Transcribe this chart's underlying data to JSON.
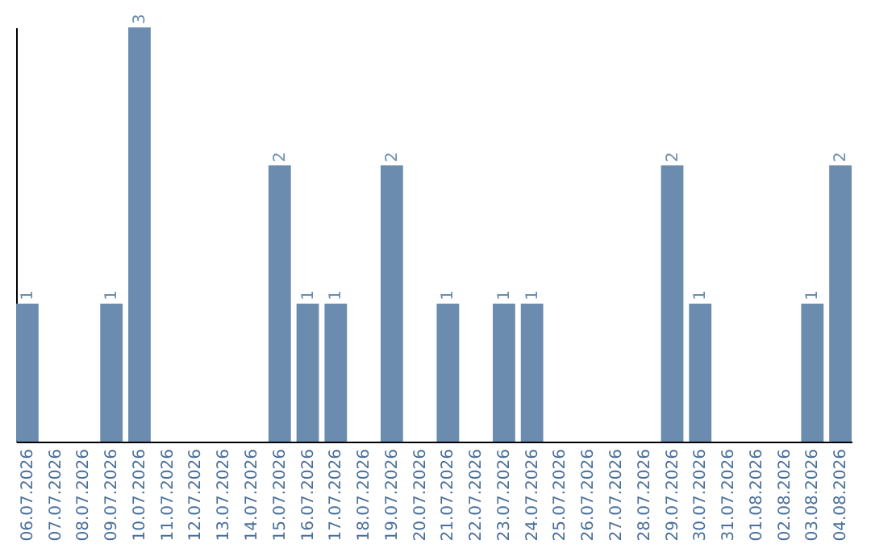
{
  "chart_data": {
    "type": "bar",
    "categories": [
      "06.07.2026",
      "07.07.2026",
      "08.07.2026",
      "09.07.2026",
      "10.07.2026",
      "11.07.2026",
      "12.07.2026",
      "13.07.2026",
      "14.07.2026",
      "15.07.2026",
      "16.07.2026",
      "17.07.2026",
      "18.07.2026",
      "19.07.2026",
      "20.07.2026",
      "21.07.2026",
      "22.07.2026",
      "23.07.2026",
      "24.07.2026",
      "25.07.2026",
      "26.07.2026",
      "27.07.2026",
      "28.07.2026",
      "29.07.2026",
      "30.07.2026",
      "31.07.2026",
      "01.08.2026",
      "02.08.2026",
      "03.08.2026",
      "04.08.2026"
    ],
    "values": [
      1,
      0,
      0,
      1,
      3,
      0,
      0,
      0,
      0,
      2,
      1,
      1,
      0,
      2,
      0,
      1,
      0,
      1,
      1,
      0,
      0,
      0,
      0,
      2,
      1,
      0,
      0,
      0,
      1,
      2
    ],
    "value_labels": [
      "1",
      null,
      null,
      "1",
      "3",
      null,
      null,
      null,
      null,
      "2",
      "1",
      "1",
      null,
      "2",
      null,
      "1",
      null,
      "1",
      "1",
      null,
      null,
      null,
      null,
      "2",
      "1",
      null,
      null,
      null,
      "1",
      "2"
    ],
    "color": "#6b8cae",
    "ylim": [
      0,
      3
    ]
  }
}
